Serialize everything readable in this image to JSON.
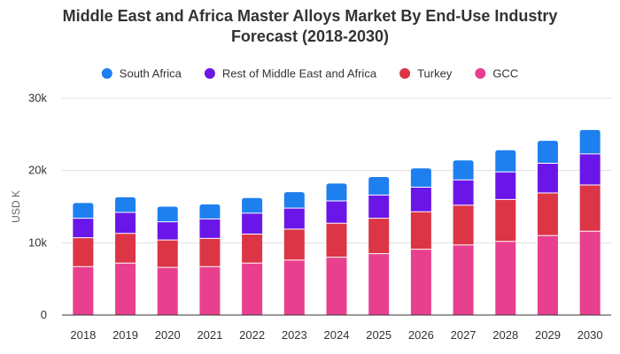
{
  "chart_data": {
    "type": "bar",
    "stacked": true,
    "title_line1": "Middle East and Africa Master Alloys Market By End-Use Industry",
    "title_line2": "Forecast (2018-2030)",
    "xlabel": "",
    "ylabel": "USD K",
    "ylim": [
      0,
      30000
    ],
    "yticks": [
      0,
      10000,
      20000,
      30000
    ],
    "ytick_labels": [
      "0",
      "10k",
      "20k",
      "30k"
    ],
    "grid": true,
    "legend_position": "top",
    "categories": [
      "2018",
      "2019",
      "2020",
      "2021",
      "2022",
      "2023",
      "2024",
      "2025",
      "2026",
      "2027",
      "2028",
      "2029",
      "2030"
    ],
    "series": [
      {
        "name": "GCC",
        "color": "#e8408e",
        "values": [
          6700,
          7200,
          6600,
          6700,
          7200,
          7600,
          8000,
          8500,
          9100,
          9700,
          10200,
          11000,
          11600
        ]
      },
      {
        "name": "Turkey",
        "color": "#dc3545",
        "values": [
          4000,
          4100,
          3800,
          3900,
          4000,
          4300,
          4700,
          4900,
          5200,
          5500,
          5800,
          5900,
          6400
        ]
      },
      {
        "name": "Rest of Middle East and Africa",
        "color": "#6a16e8",
        "values": [
          2700,
          2900,
          2500,
          2700,
          2900,
          2900,
          3100,
          3200,
          3400,
          3500,
          3800,
          4100,
          4300
        ]
      },
      {
        "name": "South Africa",
        "color": "#1e7fef",
        "values": [
          2100,
          2100,
          2100,
          2000,
          2100,
          2200,
          2400,
          2500,
          2600,
          2700,
          3000,
          3100,
          3300
        ]
      }
    ],
    "legend_order": [
      "South Africa",
      "Rest of Middle East and Africa",
      "Turkey",
      "GCC"
    ]
  },
  "colors": {
    "gridline": "#e0e0e0",
    "axis": "#333333",
    "text": "#333333"
  }
}
